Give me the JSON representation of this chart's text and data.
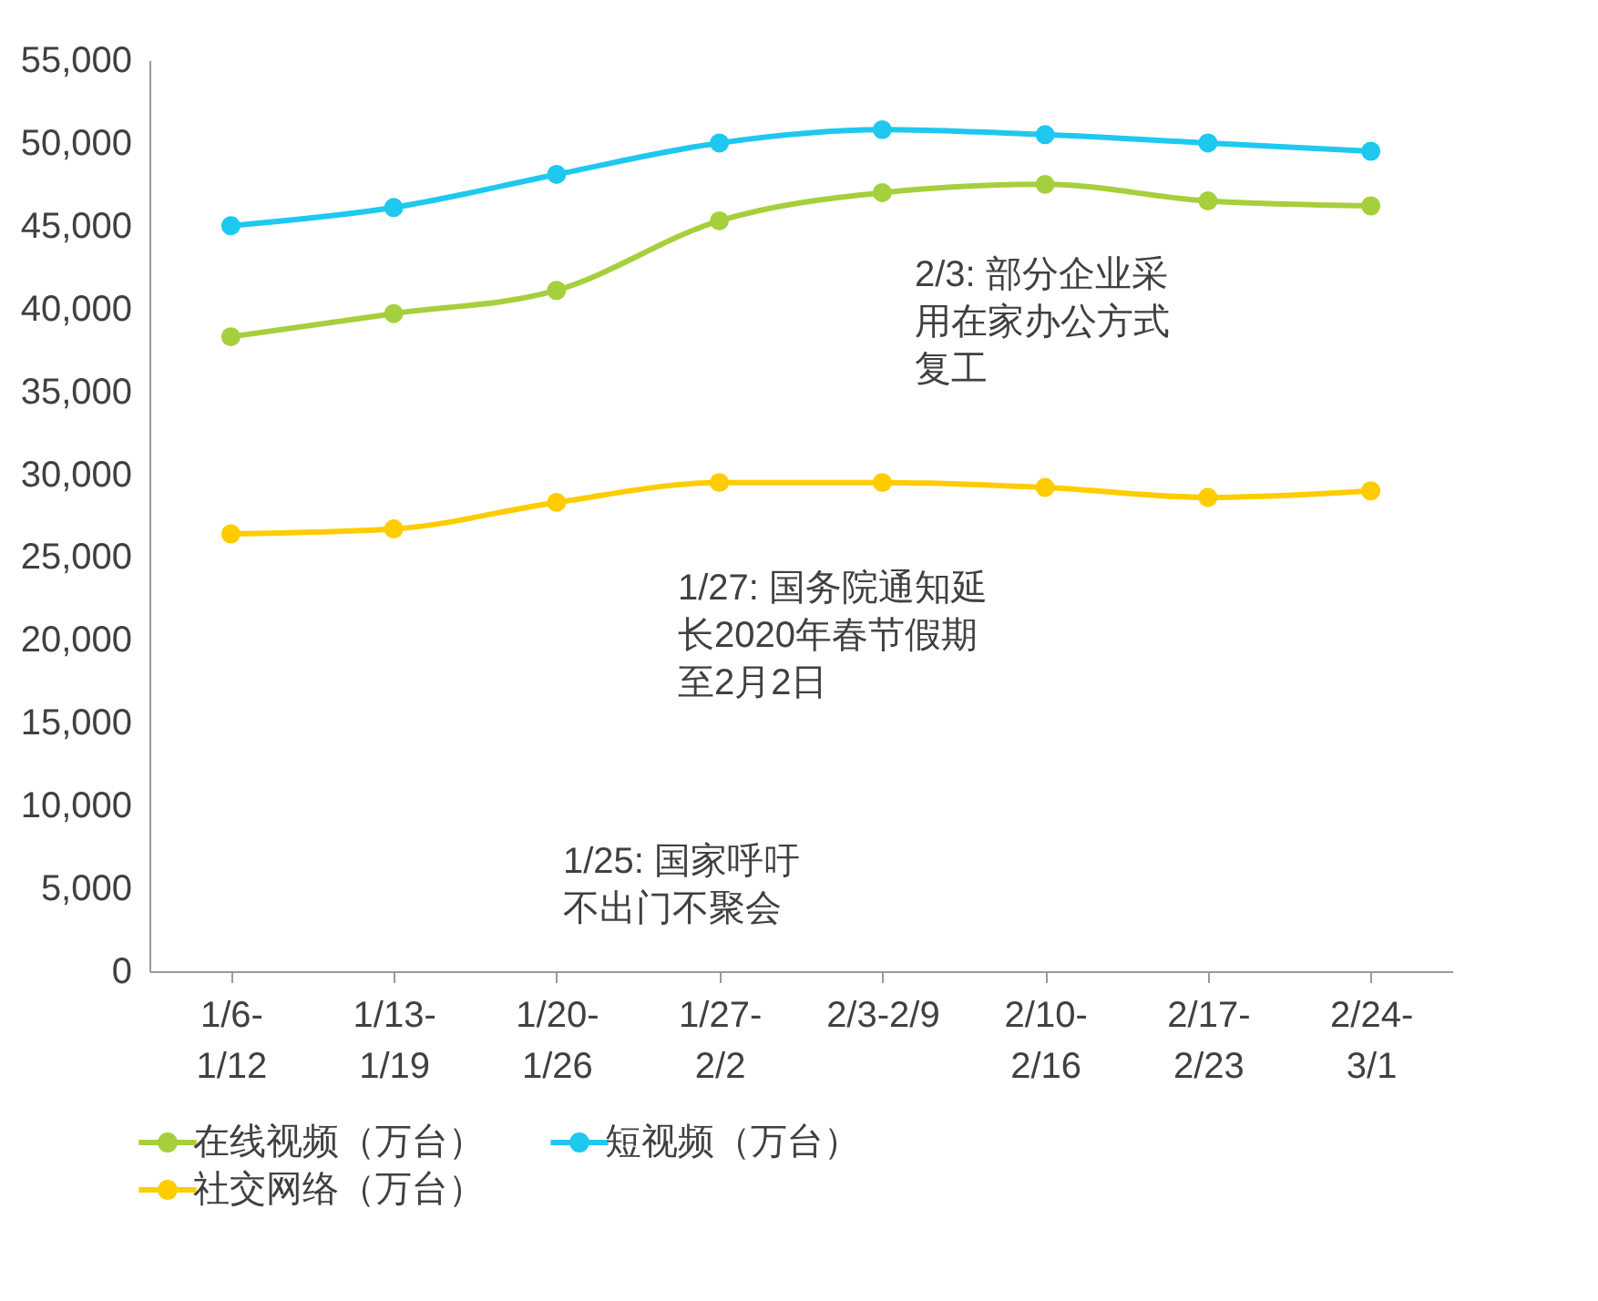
{
  "chart_data": {
    "type": "line",
    "categories": [
      "1/6-\n1/12",
      "1/13-\n1/19",
      "1/20-\n1/26",
      "1/27-\n2/2",
      "2/3-2/9",
      "2/10-\n2/16",
      "2/17-\n2/23",
      "2/24-\n3/1"
    ],
    "series": [
      {
        "name": "在线视频（万台）",
        "color": "#a5cf3c",
        "values": [
          38300,
          39700,
          41100,
          45300,
          47000,
          47500,
          46500,
          46200
        ]
      },
      {
        "name": "短视频（万台）",
        "color": "#1ec8ef",
        "values": [
          45000,
          46100,
          48100,
          50000,
          50800,
          50500,
          50000,
          49500
        ]
      },
      {
        "name": "社交网络（万台）",
        "color": "#ffcc00",
        "values": [
          26400,
          26700,
          28300,
          29500,
          29500,
          29200,
          28600,
          29000
        ]
      }
    ],
    "ylim": [
      0,
      55000
    ],
    "yticks": [
      0,
      {
        "value": 5000,
        "label": "5,000"
      },
      {
        "value": 10000,
        "label": "10,000"
      },
      {
        "value": 15000,
        "label": "15,000"
      },
      {
        "value": 20000,
        "label": "20,000"
      },
      {
        "value": 25000,
        "label": "25,000"
      },
      {
        "value": 30000,
        "label": "30,000"
      },
      {
        "value": 35000,
        "label": "35,000"
      },
      {
        "value": 40000,
        "label": "40,000"
      },
      {
        "value": 45000,
        "label": "45,000"
      },
      {
        "value": 50000,
        "label": "50,000"
      },
      {
        "value": 55000,
        "label": "55,000"
      }
    ],
    "annotations": [
      "2/3: 部分企业采用在家办公方式复工",
      "1/27: 国务院通知延长2020年春节假期至2月2日",
      "1/25: 国家呼吁不出门不聚会"
    ],
    "grid": false,
    "legend": "bottom",
    "marker": "circle",
    "line_style": "solid"
  }
}
